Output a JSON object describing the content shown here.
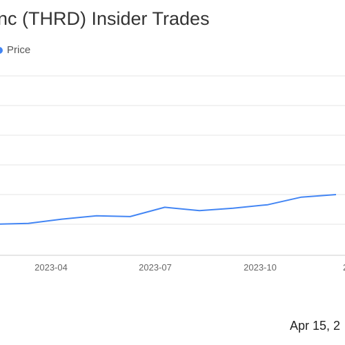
{
  "chart_data": {
    "type": "line",
    "title": "nc (THRD) Insider Trades",
    "xlabel": "",
    "ylabel": "",
    "legend": {
      "position": "top-left",
      "entries": [
        "Price"
      ]
    },
    "grid": true,
    "x_ticks": [
      "2023-04",
      "2023-07",
      "2023-10",
      "2"
    ],
    "series": [
      {
        "name": "Price",
        "color": "#4285f4",
        "x": [
          "2023-01-15",
          "2023-02-01",
          "2023-03-01",
          "2023-04-01",
          "2023-05-01",
          "2023-06-01",
          "2023-07-01",
          "2023-08-01",
          "2023-09-01",
          "2023-10-01",
          "2023-11-01",
          "2023-12-01",
          "2024-01-01"
        ],
        "values": [
          10.0,
          10.0,
          10.0,
          10.1,
          10.6,
          11.0,
          10.9,
          12.0,
          11.6,
          11.9,
          12.3,
          13.2,
          13.5
        ]
      }
    ],
    "ylim": [
      10.0,
      13.5
    ]
  },
  "footer": {
    "date_text": "Apr 15, 2"
  }
}
